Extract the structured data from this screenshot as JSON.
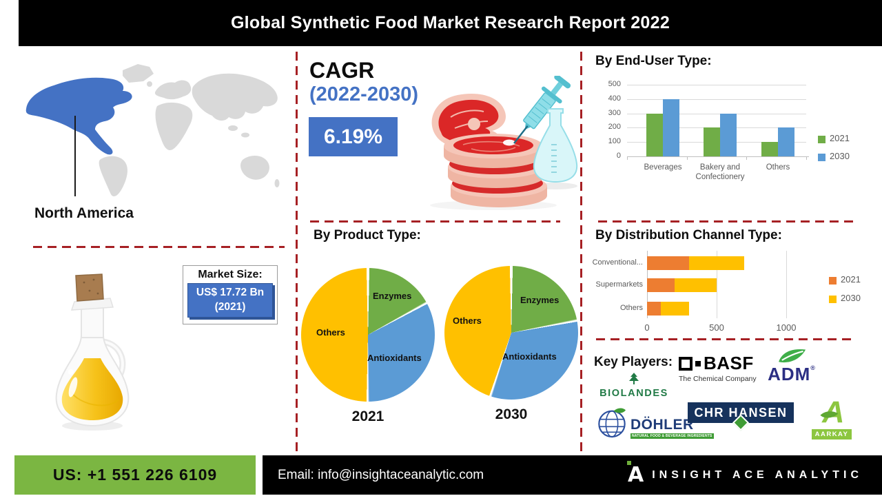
{
  "header": {
    "title": "Global Synthetic Food Market Research Report 2022"
  },
  "region": {
    "label": "North America"
  },
  "market_size": {
    "label": "Market Size:",
    "value": "US$ 17.72 Bn",
    "year": "(2021)"
  },
  "cagr": {
    "label": "CAGR",
    "period": "(2022-2030)",
    "value": "6.19%"
  },
  "chart_data": [
    {
      "type": "bar",
      "title": "By End-User Type:",
      "categories": [
        "Beverages",
        "Bakery and Confectionery",
        "Others"
      ],
      "series": [
        {
          "name": "2021",
          "color": "#70AD47",
          "values": [
            300,
            200,
            100
          ]
        },
        {
          "name": "2030",
          "color": "#5B9BD5",
          "values": [
            400,
            300,
            200
          ]
        }
      ],
      "ylim": [
        0,
        500
      ],
      "yticks": [
        0,
        100,
        200,
        300,
        400,
        500
      ],
      "grid": true,
      "legend_position": "right"
    },
    {
      "type": "pie",
      "title": "By Product Type:",
      "subtitle": "2021",
      "labels": [
        "Enzymes",
        "Antioxidants",
        "Others"
      ],
      "values": [
        17,
        33,
        50
      ],
      "colors": [
        "#70AD47",
        "#5B9BD5",
        "#FFC000"
      ]
    },
    {
      "type": "pie",
      "title": "By Product Type:",
      "subtitle": "2030",
      "labels": [
        "Enzymes",
        "Antioxidants",
        "Others"
      ],
      "values": [
        22,
        33,
        45
      ],
      "colors": [
        "#70AD47",
        "#5B9BD5",
        "#FFC000"
      ]
    },
    {
      "type": "bar",
      "orientation": "horizontal_stacked",
      "title": "By Distribution Channel Type:",
      "categories": [
        "Conventional...",
        "Supermarkets",
        "Others"
      ],
      "series": [
        {
          "name": "2021",
          "color": "#ED7D31",
          "values": [
            300,
            200,
            100
          ]
        },
        {
          "name": "2030",
          "color": "#FFC000",
          "values": [
            400,
            300,
            200
          ]
        }
      ],
      "xlim": [
        0,
        1000
      ],
      "xticks": [
        0,
        500,
        1000
      ],
      "grid": true,
      "legend_position": "right"
    }
  ],
  "key_players": {
    "label": "Key Players:",
    "basf": {
      "name": "BASF",
      "tagline": "The Chemical Company"
    },
    "adm": {
      "name": "ADM",
      "reg": "®"
    },
    "biolandes": {
      "name": "BIOLANDES"
    },
    "dohler": {
      "name": "DÖHLER",
      "tagline": "NATURAL FOOD & BEVERAGE INGREDIENTS"
    },
    "chr_hansen": {
      "name": "CHR HANSEN"
    },
    "aarkay": {
      "name": "AARKAY"
    }
  },
  "footer": {
    "phone": "US: +1 551 226 6109",
    "email": "Email: info@insightaceanalytic.com",
    "brand": "INSIGHT ACE ANALYTIC"
  },
  "colors": {
    "accent_blue": "#4472C4",
    "chart_green": "#70AD47",
    "chart_blue": "#5B9BD5",
    "chart_orange": "#ED7D31",
    "chart_yellow": "#FFC000",
    "divider_red": "#A62024",
    "footer_green": "#7BB642",
    "map_highlight": "#4472C4",
    "map_base": "#D9D9D9"
  }
}
